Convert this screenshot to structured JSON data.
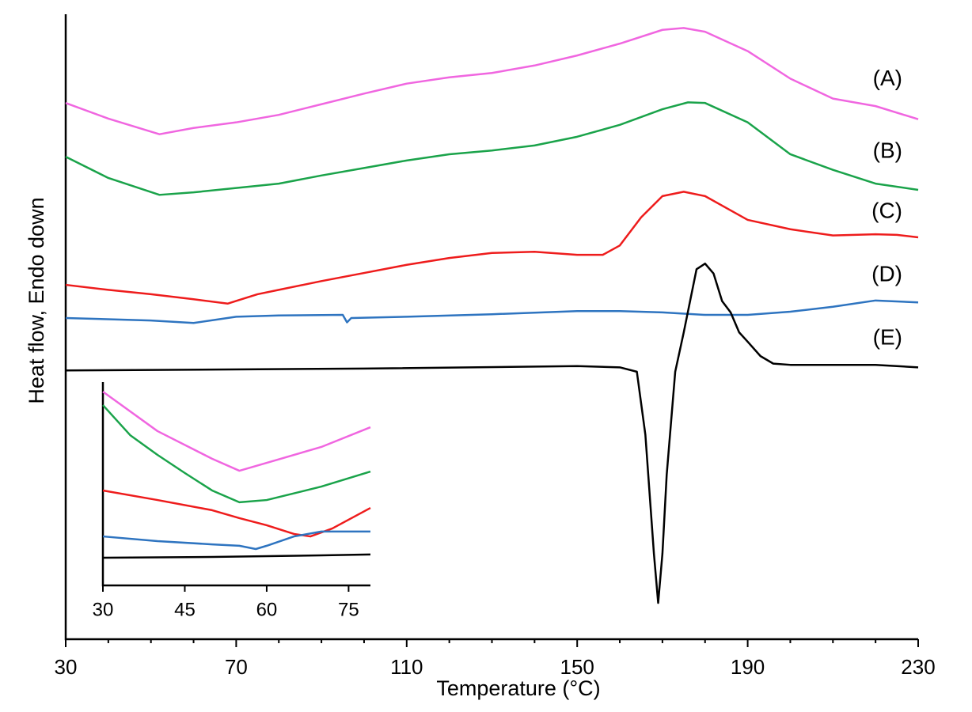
{
  "chart_data": [
    {
      "type": "line",
      "xlabel": "Temperature (°C)",
      "ylabel": "Heat flow, Endo down",
      "xlim": [
        30,
        230
      ],
      "xticks": [
        30,
        70,
        110,
        150,
        190,
        230
      ],
      "xminorticks": [
        40,
        50,
        60,
        80,
        90,
        100,
        120,
        130,
        140,
        160,
        170,
        180,
        200,
        210,
        220
      ],
      "ylim": [
        0,
        100
      ],
      "series": [
        {
          "name": "(A)",
          "color": "#f066e0",
          "x": [
            30,
            40,
            52,
            60,
            70,
            80,
            90,
            100,
            110,
            120,
            130,
            140,
            150,
            160,
            170,
            175,
            180,
            190,
            200,
            210,
            220,
            230
          ],
          "values": [
            85.8,
            83.3,
            80.8,
            81.8,
            82.7,
            83.9,
            85.6,
            87.3,
            88.9,
            89.9,
            90.6,
            91.8,
            93.4,
            95.3,
            97.5,
            97.8,
            97.2,
            94.1,
            89.7,
            86.5,
            85.3,
            83.2
          ]
        },
        {
          "name": "(B)",
          "color": "#1aa34a",
          "x": [
            30,
            40,
            52,
            60,
            70,
            80,
            90,
            100,
            110,
            120,
            130,
            140,
            150,
            160,
            170,
            176,
            180,
            190,
            200,
            210,
            220,
            230
          ],
          "values": [
            77.2,
            73.8,
            71.1,
            71.5,
            72.2,
            72.9,
            74.2,
            75.4,
            76.6,
            77.6,
            78.2,
            79.0,
            80.4,
            82.3,
            84.8,
            85.9,
            85.8,
            82.7,
            77.6,
            75.1,
            72.9,
            71.9
          ]
        },
        {
          "name": "(C)",
          "color": "#ee1c1c",
          "x": [
            30,
            40,
            50,
            60,
            68,
            75,
            80,
            90,
            100,
            110,
            120,
            130,
            140,
            150,
            156,
            160,
            165,
            170,
            175,
            180,
            190,
            200,
            210,
            220,
            225,
            230
          ],
          "values": [
            56.7,
            55.9,
            55.2,
            54.4,
            53.7,
            55.2,
            55.9,
            57.3,
            58.6,
            59.9,
            61.0,
            61.8,
            62.0,
            61.5,
            61.5,
            63.0,
            67.5,
            70.9,
            71.6,
            70.9,
            67.1,
            65.6,
            64.6,
            64.8,
            64.7,
            64.3
          ]
        },
        {
          "name": "(D)",
          "color": "#2e74c0",
          "x": [
            30,
            50,
            60,
            70,
            80,
            95,
            96,
            97,
            110,
            130,
            150,
            160,
            170,
            180,
            190,
            200,
            210,
            220,
            230
          ],
          "values": [
            51.4,
            51.0,
            50.6,
            51.6,
            51.8,
            51.9,
            50.7,
            51.4,
            51.6,
            52.0,
            52.5,
            52.5,
            52.3,
            51.9,
            51.9,
            52.4,
            53.2,
            54.2,
            53.9
          ]
        },
        {
          "name": "(E)",
          "color": "#000000",
          "x": [
            30,
            100,
            150,
            160,
            164,
            166,
            168,
            169,
            170,
            171,
            173,
            175,
            178,
            180,
            182,
            184,
            186,
            188,
            190,
            193,
            196,
            200,
            220,
            230
          ],
          "values": [
            43.0,
            43.3,
            43.7,
            43.5,
            42.8,
            32.7,
            13.7,
            5.8,
            13.7,
            26.3,
            42.8,
            49.1,
            59.2,
            60.1,
            58.5,
            54.1,
            52.3,
            49.1,
            47.6,
            45.3,
            44.1,
            43.9,
            43.9,
            43.5
          ]
        }
      ]
    },
    {
      "type": "line",
      "xlim": [
        30,
        79
      ],
      "xticks": [
        30,
        45,
        60,
        75
      ],
      "ylim": [
        0,
        100
      ],
      "series": [
        {
          "color": "#f066e0",
          "x": [
            30,
            40,
            50,
            55,
            60,
            70,
            79
          ],
          "values": [
            95.3,
            75.9,
            62.3,
            56.4,
            60.3,
            68.1,
            77.8
          ]
        },
        {
          "color": "#1aa34a",
          "x": [
            30,
            35,
            40,
            45,
            50,
            55,
            60,
            70,
            79
          ],
          "values": [
            88.7,
            73.9,
            64.2,
            55.3,
            46.7,
            40.9,
            42.0,
            48.6,
            56.0
          ]
        },
        {
          "color": "#ee1c1c",
          "x": [
            30,
            40,
            50,
            55,
            60,
            65,
            68,
            72,
            79
          ],
          "values": [
            46.7,
            42.0,
            37.0,
            33.1,
            29.6,
            25.3,
            24.1,
            28.0,
            38.1
          ]
        },
        {
          "color": "#2e74c0",
          "x": [
            30,
            40,
            50,
            55,
            58,
            60,
            65,
            70,
            79
          ],
          "values": [
            24.1,
            21.8,
            20.2,
            19.5,
            17.9,
            19.5,
            24.1,
            26.5,
            26.5
          ]
        },
        {
          "color": "#000000",
          "x": [
            30,
            50,
            70,
            79
          ],
          "values": [
            13.6,
            14.0,
            14.8,
            15.2
          ]
        }
      ]
    }
  ]
}
